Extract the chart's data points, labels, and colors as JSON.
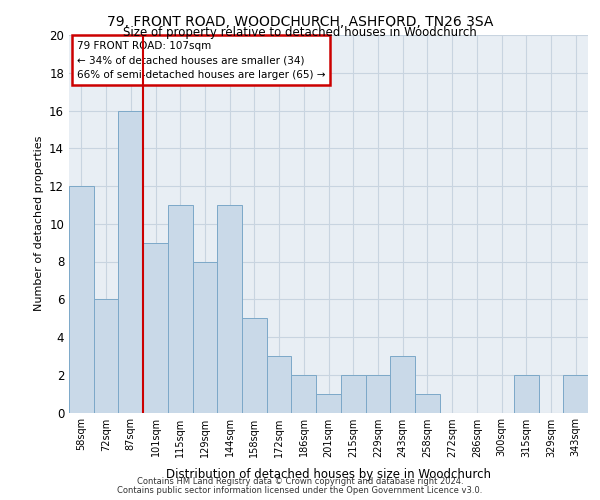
{
  "title1": "79, FRONT ROAD, WOODCHURCH, ASHFORD, TN26 3SA",
  "title2": "Size of property relative to detached houses in Woodchurch",
  "xlabel": "Distribution of detached houses by size in Woodchurch",
  "ylabel": "Number of detached properties",
  "categories": [
    "58sqm",
    "72sqm",
    "87sqm",
    "101sqm",
    "115sqm",
    "129sqm",
    "144sqm",
    "158sqm",
    "172sqm",
    "186sqm",
    "201sqm",
    "215sqm",
    "229sqm",
    "243sqm",
    "258sqm",
    "272sqm",
    "286sqm",
    "300sqm",
    "315sqm",
    "329sqm",
    "343sqm"
  ],
  "values": [
    12,
    6,
    16,
    9,
    11,
    8,
    11,
    5,
    3,
    2,
    1,
    2,
    2,
    3,
    1,
    0,
    0,
    0,
    2,
    0,
    2
  ],
  "bar_color": "#c9d9e8",
  "bar_edge_color": "#7ca8c8",
  "vline_color": "#cc0000",
  "annotation_lines": [
    "79 FRONT ROAD: 107sqm",
    "← 34% of detached houses are smaller (34)",
    "66% of semi-detached houses are larger (65) →"
  ],
  "annotation_box_color": "#ffffff",
  "annotation_box_edge": "#cc0000",
  "ylim": [
    0,
    20
  ],
  "yticks": [
    0,
    2,
    4,
    6,
    8,
    10,
    12,
    14,
    16,
    18,
    20
  ],
  "grid_color": "#c8d4e0",
  "bg_color": "#e8eef4",
  "footer1": "Contains HM Land Registry data © Crown copyright and database right 2024.",
  "footer2": "Contains public sector information licensed under the Open Government Licence v3.0."
}
